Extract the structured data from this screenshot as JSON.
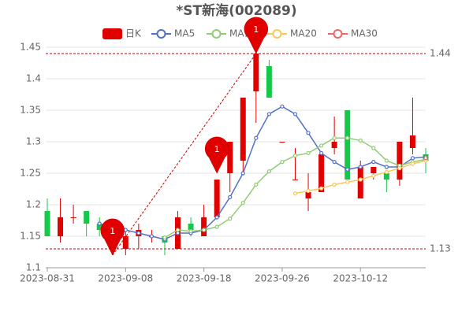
{
  "chart_data": {
    "type": "candlestick",
    "title": "*ST新海(002089)",
    "candle_name": "日K",
    "up_color": "#e00000",
    "down_color": "#14c84a",
    "categories": [
      "2023-08-31",
      "2023-09-01",
      "2023-09-04",
      "2023-09-05",
      "2023-09-06",
      "2023-09-07",
      "2023-09-08",
      "2023-09-11",
      "2023-09-12",
      "2023-09-13",
      "2023-09-14",
      "2023-09-15",
      "2023-09-18",
      "2023-09-19",
      "2023-09-20",
      "2023-09-21",
      "2023-09-22",
      "2023-09-25",
      "2023-09-26",
      "2023-09-27",
      "2023-09-28",
      "2023-10-09",
      "2023-10-10",
      "2023-10-11",
      "2023-10-12",
      "2023-10-13",
      "2023-10-16",
      "2023-10-17",
      "2023-10-18",
      "2023-10-19"
    ],
    "open": [
      1.19,
      1.15,
      1.18,
      1.19,
      1.17,
      1.15,
      1.13,
      1.15,
      1.15,
      1.15,
      1.13,
      1.17,
      1.15,
      1.18,
      1.25,
      1.27,
      1.38,
      1.42,
      1.3,
      1.24,
      1.21,
      1.22,
      1.29,
      1.35,
      1.21,
      1.25,
      1.25,
      1.24,
      1.29,
      1.28
    ],
    "close": [
      1.15,
      1.18,
      1.18,
      1.17,
      1.16,
      1.16,
      1.15,
      1.16,
      1.15,
      1.14,
      1.18,
      1.16,
      1.18,
      1.24,
      1.3,
      1.37,
      1.44,
      1.37,
      1.3,
      1.24,
      1.22,
      1.28,
      1.3,
      1.24,
      1.26,
      1.26,
      1.24,
      1.3,
      1.31,
      1.27
    ],
    "high": [
      1.21,
      1.21,
      1.2,
      1.19,
      1.18,
      1.16,
      1.16,
      1.17,
      1.16,
      1.15,
      1.19,
      1.18,
      1.2,
      1.24,
      1.3,
      1.37,
      1.44,
      1.43,
      1.3,
      1.29,
      1.25,
      1.28,
      1.34,
      1.35,
      1.27,
      1.26,
      1.25,
      1.3,
      1.37,
      1.29
    ],
    "low": [
      1.15,
      1.14,
      1.17,
      1.15,
      1.15,
      1.12,
      1.12,
      1.13,
      1.14,
      1.12,
      1.13,
      1.15,
      1.15,
      1.18,
      1.22,
      1.25,
      1.33,
      1.37,
      1.3,
      1.24,
      1.19,
      1.22,
      1.28,
      1.24,
      1.21,
      1.24,
      1.22,
      1.23,
      1.28,
      1.25
    ],
    "series": [
      {
        "name": "MA5",
        "color": "#5470c6",
        "values": [
          null,
          null,
          null,
          null,
          1.17,
          1.16,
          1.16,
          1.155,
          1.15,
          1.145,
          1.155,
          1.155,
          1.16,
          1.18,
          1.212,
          1.25,
          1.306,
          1.344,
          1.356,
          1.344,
          1.314,
          1.282,
          1.268,
          1.256,
          1.26,
          1.268,
          1.26,
          1.26,
          1.274,
          1.276
        ]
      },
      {
        "name": "MA10",
        "color": "#91cc75",
        "values": [
          null,
          null,
          null,
          null,
          null,
          null,
          null,
          null,
          null,
          1.148,
          1.16,
          1.158,
          1.16,
          1.165,
          1.178,
          1.203,
          1.232,
          1.253,
          1.268,
          1.278,
          1.282,
          1.294,
          1.306,
          1.306,
          1.302,
          1.29,
          1.27,
          1.262,
          1.268,
          1.272
        ]
      },
      {
        "name": "MA20",
        "color": "#fac858",
        "values": [
          null,
          null,
          null,
          null,
          null,
          null,
          null,
          null,
          null,
          null,
          null,
          null,
          null,
          null,
          null,
          null,
          null,
          null,
          null,
          1.218,
          1.222,
          1.226,
          1.232,
          1.236,
          1.24,
          1.246,
          1.252,
          1.258,
          1.265,
          1.27
        ]
      },
      {
        "name": "MA30",
        "color": "#ee6666",
        "values": [
          null,
          null,
          null,
          null,
          null,
          null,
          null,
          null,
          null,
          null,
          null,
          null,
          null,
          null,
          null,
          null,
          null,
          null,
          null,
          null,
          null,
          null,
          null,
          null,
          null,
          null,
          null,
          null,
          null,
          1.274
        ]
      }
    ],
    "markers": [
      {
        "x": "2023-09-07",
        "y": 1.12,
        "label": "1"
      },
      {
        "x": "2023-09-19",
        "y": 1.25,
        "label": "1"
      },
      {
        "x": "2023-09-22",
        "y": 1.44,
        "label": "1"
      }
    ],
    "hlines": [
      1.44,
      1.13
    ],
    "ylim": [
      1.1,
      1.45
    ],
    "yticks": [
      1.1,
      1.15,
      1.2,
      1.25,
      1.3,
      1.35,
      1.4,
      1.45
    ],
    "xticks": [
      "2023-08-31",
      "2023-09-08",
      "2023-09-18",
      "2023-09-26",
      "2023-10-12"
    ],
    "grid": true
  }
}
